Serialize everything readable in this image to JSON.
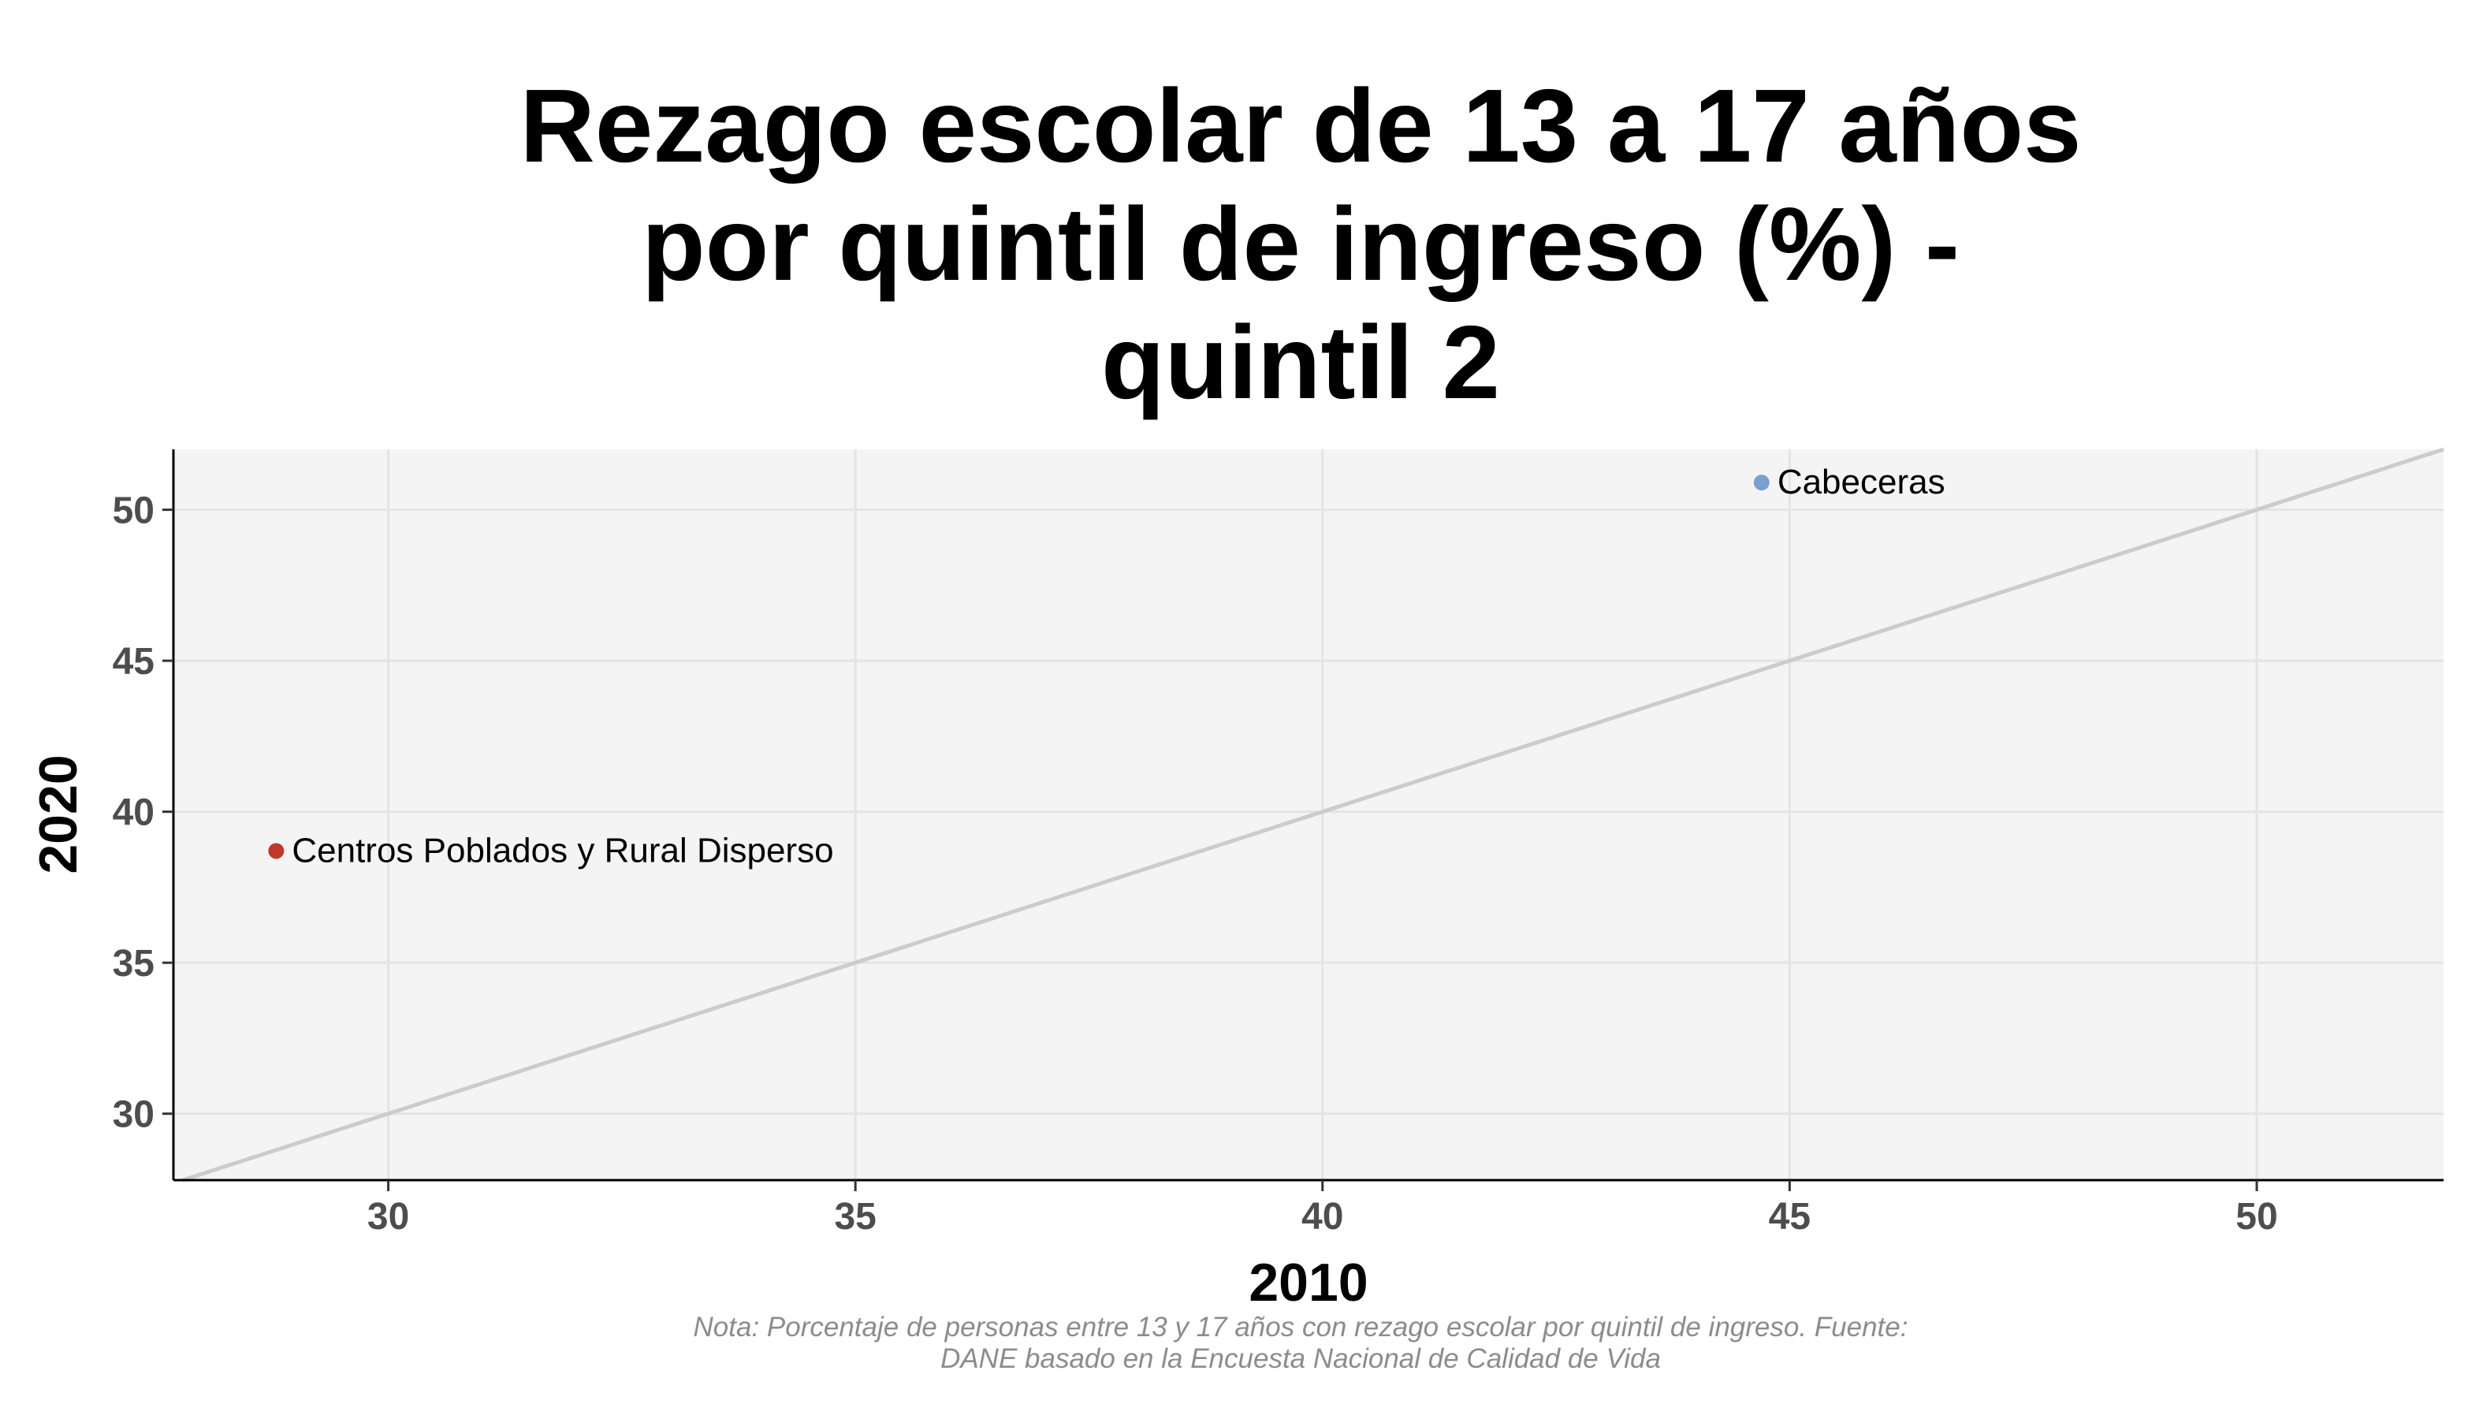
{
  "chart_data": {
    "type": "scatter",
    "title_lines": [
      "Rezago escolar de 13 a 17 años",
      "por quintil de ingreso (%) -",
      "quintil 2"
    ],
    "xlabel": "2010",
    "ylabel": "2020",
    "xlim": [
      27.7,
      52.0
    ],
    "ylim": [
      27.8,
      52.0
    ],
    "x_ticks": [
      30,
      35,
      40,
      45,
      50
    ],
    "y_ticks": [
      30,
      35,
      40,
      45,
      50
    ],
    "grid": true,
    "reference_line": "y = x",
    "points": [
      {
        "label": "Cabeceras",
        "x": 44.7,
        "y": 50.9,
        "color": "#7b9fd1"
      },
      {
        "label": "Centros Poblados y Rural Disperso",
        "x": 28.8,
        "y": 38.7,
        "color": "#c0392b"
      }
    ],
    "note_lines": [
      "Nota: Porcentaje de personas entre 13 y 17 años con rezago escolar por quintil de ingreso. Fuente:",
      "DANE basado en la Encuesta Nacional de Calidad de Vida"
    ]
  }
}
